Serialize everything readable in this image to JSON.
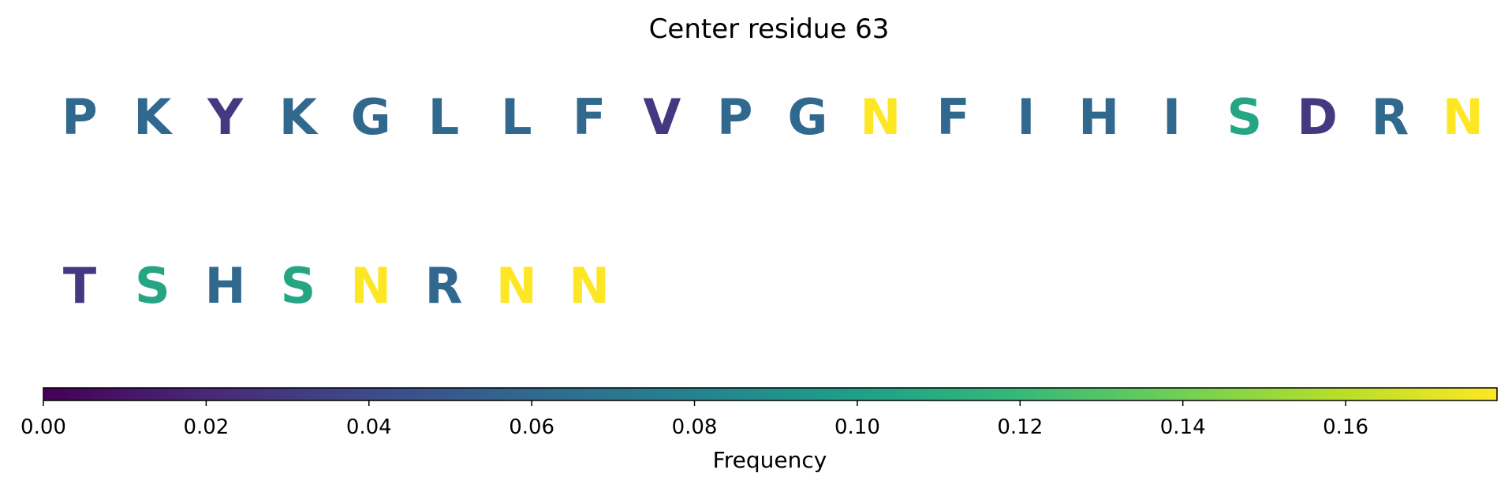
{
  "chart_data": {
    "type": "sequence-logo",
    "title": "Center residue 63",
    "residues": [
      {
        "letter": "P",
        "frequency": 0.06
      },
      {
        "letter": "K",
        "frequency": 0.06
      },
      {
        "letter": "Y",
        "frequency": 0.03
      },
      {
        "letter": "K",
        "frequency": 0.06
      },
      {
        "letter": "G",
        "frequency": 0.06
      },
      {
        "letter": "L",
        "frequency": 0.06
      },
      {
        "letter": "L",
        "frequency": 0.06
      },
      {
        "letter": "F",
        "frequency": 0.06
      },
      {
        "letter": "V",
        "frequency": 0.03
      },
      {
        "letter": "P",
        "frequency": 0.06
      },
      {
        "letter": "G",
        "frequency": 0.06
      },
      {
        "letter": "N",
        "frequency": 0.18
      },
      {
        "letter": "F",
        "frequency": 0.06
      },
      {
        "letter": "I",
        "frequency": 0.06
      },
      {
        "letter": "H",
        "frequency": 0.06
      },
      {
        "letter": "I",
        "frequency": 0.06
      },
      {
        "letter": "S",
        "frequency": 0.105
      },
      {
        "letter": "D",
        "frequency": 0.03
      },
      {
        "letter": "R",
        "frequency": 0.06
      },
      {
        "letter": "N",
        "frequency": 0.18
      },
      {
        "letter": "T",
        "frequency": 0.03
      },
      {
        "letter": "S",
        "frequency": 0.105
      },
      {
        "letter": "H",
        "frequency": 0.06
      },
      {
        "letter": "S",
        "frequency": 0.105
      },
      {
        "letter": "N",
        "frequency": 0.18
      },
      {
        "letter": "R",
        "frequency": 0.06
      },
      {
        "letter": "N",
        "frequency": 0.18
      },
      {
        "letter": "N",
        "frequency": 0.18
      }
    ],
    "residues_per_row": 20,
    "colorbar": {
      "label": "Frequency",
      "range": [
        0,
        0.1786
      ],
      "colormap": "viridis",
      "ticks": [
        0.0,
        0.02,
        0.04,
        0.06,
        0.08,
        0.1,
        0.12,
        0.14,
        0.16
      ],
      "tick_labels": [
        "0.00",
        "0.02",
        "0.04",
        "0.06",
        "0.08",
        "0.10",
        "0.12",
        "0.14",
        "0.16"
      ]
    },
    "colormap_stops": [
      "#440154",
      "#482878",
      "#3e4989",
      "#31688e",
      "#26828e",
      "#1f9e89",
      "#35b779",
      "#6ece58",
      "#b5de2b",
      "#fde725"
    ]
  }
}
